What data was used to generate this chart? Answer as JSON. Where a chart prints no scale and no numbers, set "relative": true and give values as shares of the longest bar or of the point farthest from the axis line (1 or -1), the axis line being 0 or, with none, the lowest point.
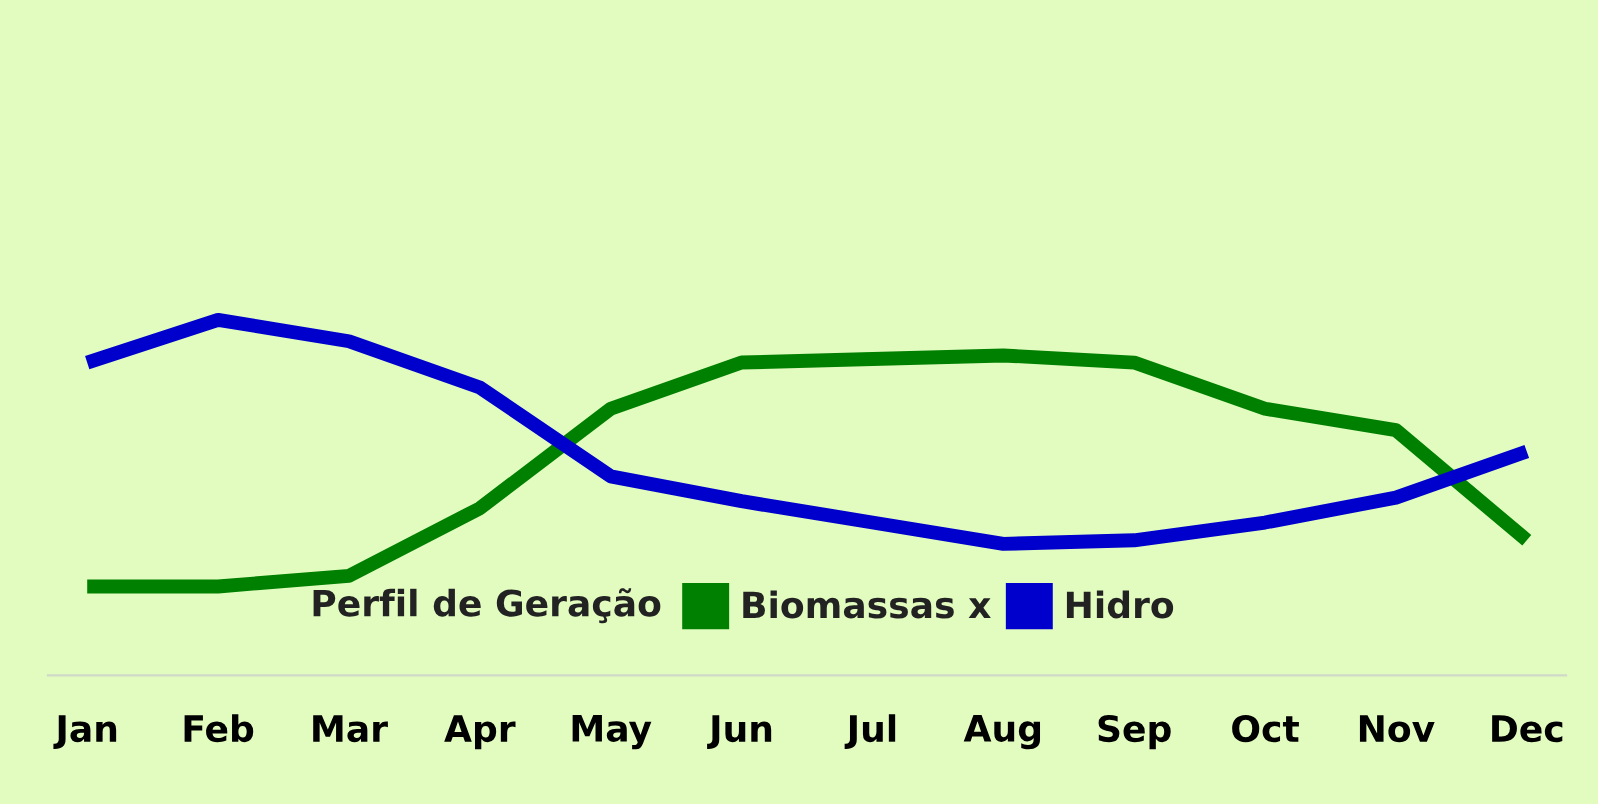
{
  "chart_data": {
    "type": "line",
    "relative": true,
    "legend_title": "Perfil de Geração",
    "legend": "bottom",
    "grid": false,
    "categories": [
      "Jan",
      "Feb",
      "Mar",
      "Apr",
      "May",
      "Jun",
      "Jul",
      "Aug",
      "Sep",
      "Oct",
      "Nov",
      "Dec"
    ],
    "series": [
      {
        "name": "Biomassas x",
        "color": "#008000",
        "values": [
          0.25,
          0.25,
          0.28,
          0.47,
          0.75,
          0.88,
          0.89,
          0.9,
          0.88,
          0.75,
          0.69,
          0.38
        ]
      },
      {
        "name": "Hidro",
        "color": "#0000cc",
        "values": [
          0.88,
          1.0,
          0.94,
          0.81,
          0.56,
          0.49,
          0.43,
          0.37,
          0.38,
          0.43,
          0.5,
          0.63
        ]
      }
    ]
  }
}
